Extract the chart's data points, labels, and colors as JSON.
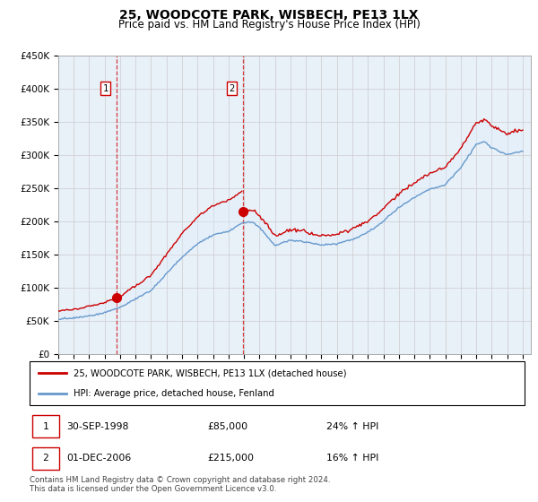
{
  "title": "25, WOODCOTE PARK, WISBECH, PE13 1LX",
  "subtitle": "Price paid vs. HM Land Registry's House Price Index (HPI)",
  "ylabel_ticks": [
    "£0",
    "£50K",
    "£100K",
    "£150K",
    "£200K",
    "£250K",
    "£300K",
    "£350K",
    "£400K",
    "£450K"
  ],
  "ytick_vals": [
    0,
    50000,
    100000,
    150000,
    200000,
    250000,
    300000,
    350000,
    400000,
    450000
  ],
  "ylim": [
    0,
    450000
  ],
  "xlim_start": 1995.0,
  "xlim_end": 2025.5,
  "purchase1": {
    "date": 1998.75,
    "price": 85000,
    "label": "1"
  },
  "purchase2": {
    "date": 2006.917,
    "price": 215000,
    "label": "2"
  },
  "legend_line1": "25, WOODCOTE PARK, WISBECH, PE13 1LX (detached house)",
  "legend_line2": "HPI: Average price, detached house, Fenland",
  "annotation1_date": "30-SEP-1998",
  "annotation1_price": "£85,000",
  "annotation1_hpi": "24% ↑ HPI",
  "annotation2_date": "01-DEC-2006",
  "annotation2_price": "£215,000",
  "annotation2_hpi": "16% ↑ HPI",
  "footer": "Contains HM Land Registry data © Crown copyright and database right 2024.\nThis data is licensed under the Open Government Licence v3.0.",
  "red_color": "#cc0000",
  "blue_color": "#6699cc",
  "fill_color": "#ddeeff",
  "grid_color": "#cccccc",
  "bg_color": "#ffffff",
  "chart_bg": "#e8f0f8",
  "title_fontsize": 10,
  "subtitle_fontsize": 8.5
}
